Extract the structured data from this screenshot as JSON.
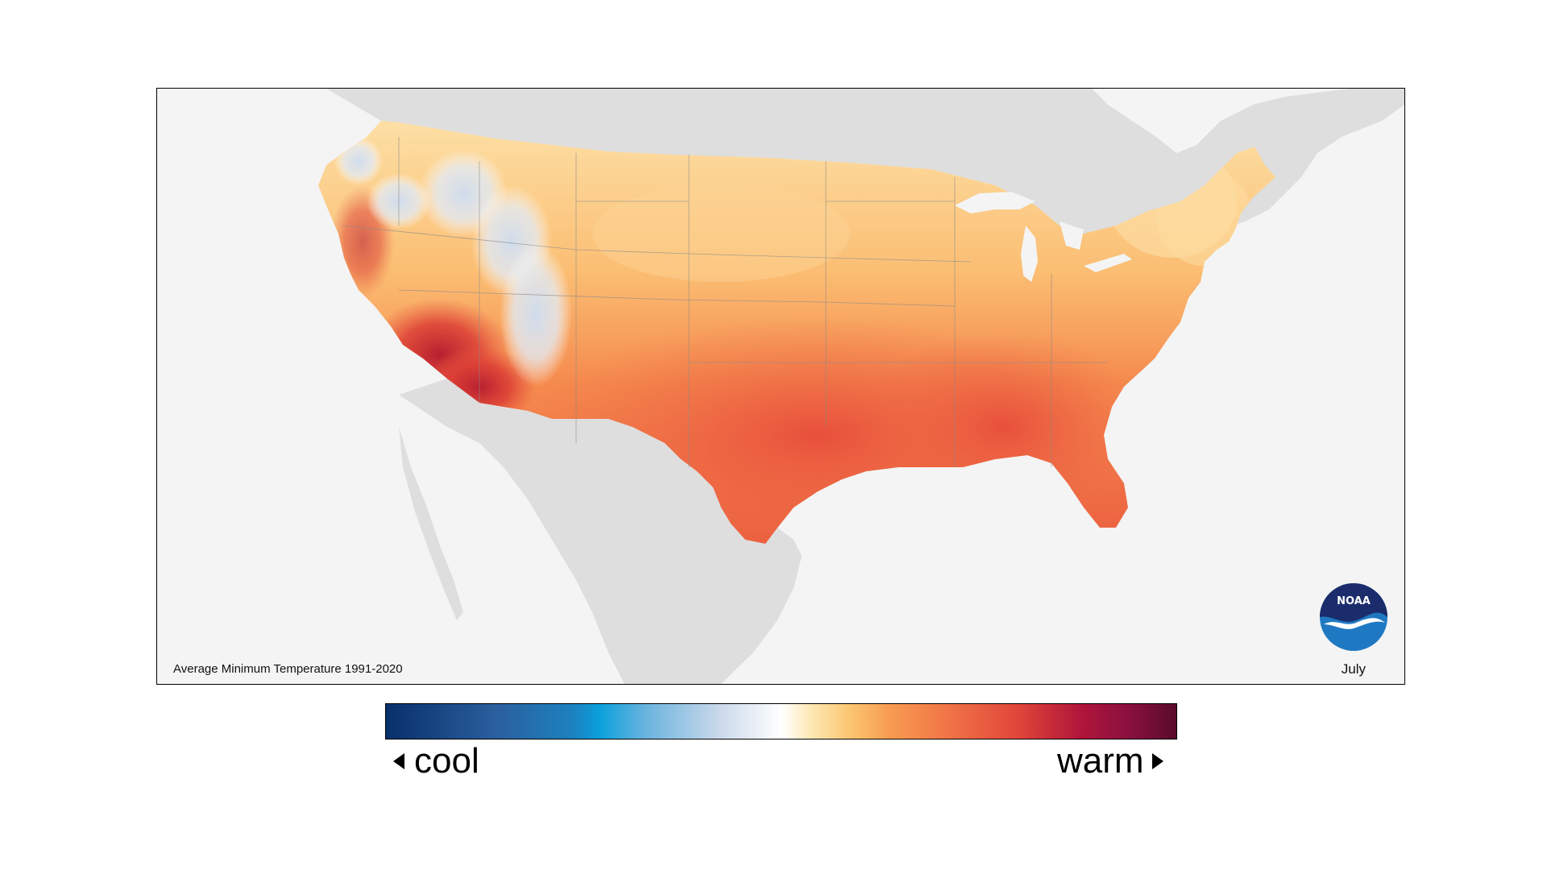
{
  "map": {
    "caption": "Average Minimum Temperature 1991-2020",
    "month": "July",
    "logo_text": "NOAA",
    "colors": {
      "background": "#f4f4f4",
      "land_outside": "#dedede",
      "cool": "#08306b",
      "neutral": "#ffffff",
      "warm": "#5a0a2a"
    }
  },
  "legend": {
    "cool_label": "cool",
    "warm_label": "warm"
  }
}
